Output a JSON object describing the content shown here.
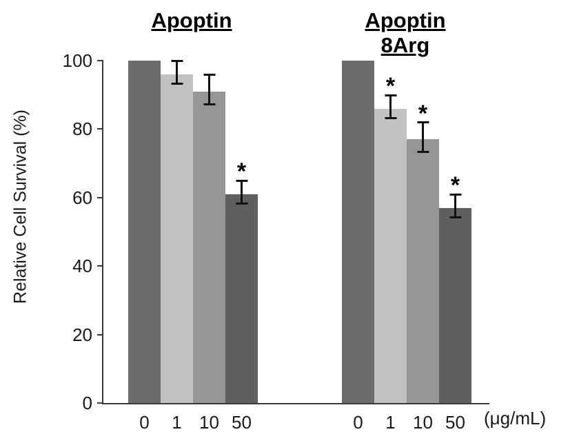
{
  "chart_data": {
    "type": "bar",
    "title": "",
    "ylabel": "Relative  Cell Survival (%)",
    "xlabel": "",
    "unit_label": "(μg/mL)",
    "ylim": [
      0,
      100
    ],
    "yticks": [
      0,
      20,
      40,
      60,
      80,
      100
    ],
    "categories": [
      "0",
      "1",
      "10",
      "50"
    ],
    "bar_colors": [
      "#6b6b6b",
      "#c2c2c2",
      "#969696",
      "#5f5f5f"
    ],
    "significance_marker": "*",
    "grid": "off",
    "legend": "none",
    "groups": [
      {
        "title": "Apoptin",
        "bars": [
          {
            "label": "0",
            "value": 100,
            "error": 0,
            "significant": false
          },
          {
            "label": "1",
            "value": 96,
            "error": 3,
            "significant": false
          },
          {
            "label": "10",
            "value": 91,
            "error": 4,
            "significant": false
          },
          {
            "label": "50",
            "value": 61,
            "error": 3,
            "significant": true
          }
        ]
      },
      {
        "title": "Apoptin 8Arg",
        "bars": [
          {
            "label": "0",
            "value": 100,
            "error": 0,
            "significant": false
          },
          {
            "label": "1",
            "value": 86,
            "error": 3,
            "significant": true
          },
          {
            "label": "10",
            "value": 77,
            "error": 4,
            "significant": true
          },
          {
            "label": "50",
            "value": 57,
            "error": 3,
            "significant": true
          }
        ]
      }
    ]
  }
}
